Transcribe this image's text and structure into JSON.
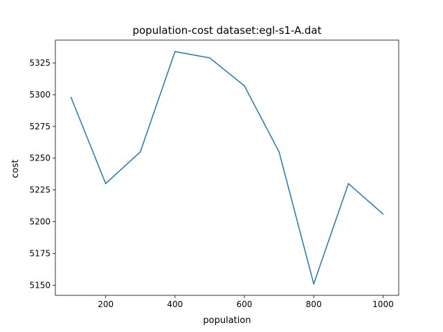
{
  "chart_data": {
    "type": "line",
    "title": "population-cost  dataset:egl-s1-A.dat",
    "xlabel": "population",
    "ylabel": "cost",
    "xlim": [
      55,
      1045
    ],
    "ylim": [
      5142,
      5343
    ],
    "xticks": [
      200,
      400,
      600,
      800,
      1000
    ],
    "yticks": [
      5150,
      5175,
      5200,
      5225,
      5250,
      5275,
      5300,
      5325
    ],
    "grid": false,
    "series": [
      {
        "color": "#1f77b4",
        "x": [
          100,
          200,
          300,
          400,
          500,
          600,
          700,
          800,
          900,
          1000
        ],
        "y": [
          5298,
          5230,
          5255,
          5334,
          5329,
          5307,
          5255,
          5151,
          5230,
          5206
        ]
      }
    ]
  }
}
